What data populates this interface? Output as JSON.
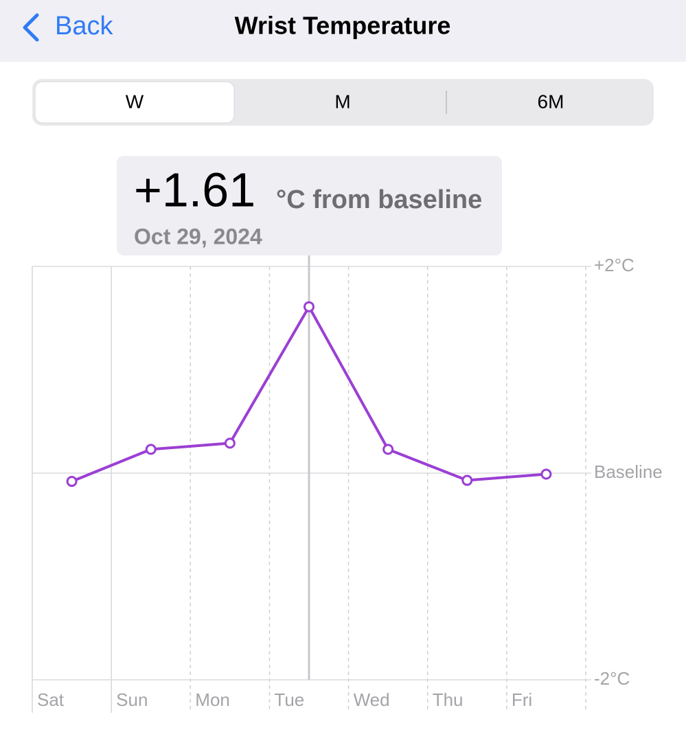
{
  "header": {
    "back": "Back",
    "title": "Wrist Temperature"
  },
  "segments": {
    "items": [
      "W",
      "M",
      "6M"
    ],
    "selected": "W"
  },
  "tooltip": {
    "value": "+1.61",
    "unit": "°C from baseline",
    "date": "Oct 29, 2024"
  },
  "chart_data": {
    "type": "line",
    "categories": [
      "Sat",
      "Sun",
      "Mon",
      "Tue",
      "Wed",
      "Thu",
      "Fri"
    ],
    "series": [
      {
        "color": "#9b3fd3",
        "values": [
          -0.08,
          0.23,
          0.29,
          1.61,
          0.23,
          -0.07,
          -0.01
        ]
      }
    ],
    "ylim": [
      -2,
      2
    ],
    "yticks": [
      {
        "value": 2,
        "label": "+2°C"
      },
      {
        "value": 0,
        "label": "Baseline"
      },
      {
        "value": -2,
        "label": "-2°C"
      }
    ],
    "grid": true,
    "selected": "Tue"
  }
}
